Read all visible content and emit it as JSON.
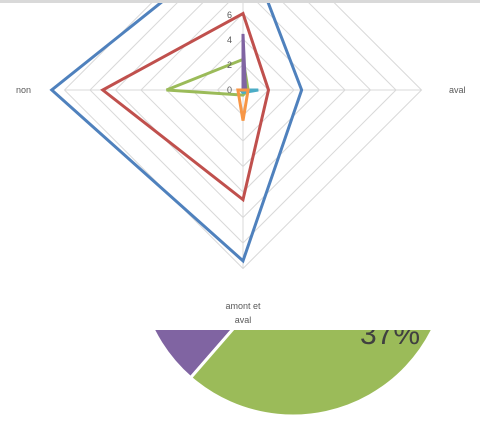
{
  "chart_data": [
    {
      "type": "radar",
      "axes": [
        "aval",
        "amont et aval",
        "non",
        ""
      ],
      "axis_labels": {
        "aval": "aval",
        "amont_line1": "amont et",
        "amont_line2": "aval",
        "non": "non"
      },
      "ticks": [
        "0",
        "2",
        "4",
        "6"
      ],
      "rlim": [
        0,
        7
      ],
      "grid": true,
      "series": [
        {
          "values": [
            2.3,
            6.7,
            7.5,
            6.0
          ],
          "color": "#4f81bd"
        },
        {
          "values": [
            1.0,
            4.3,
            5.5,
            3.0
          ],
          "color": "#c0504d"
        },
        {
          "values": [
            0.2,
            0.2,
            3.0,
            1.2
          ],
          "color": "#9bbb59"
        },
        {
          "values": [
            0.1,
            0.0,
            0.0,
            2.2
          ],
          "color": "#8064a2"
        },
        {
          "values": [
            0.6,
            0.1,
            0.1,
            0.0
          ],
          "color": "#4bacc6"
        },
        {
          "values": [
            0.2,
            1.2,
            0.2,
            0.0
          ],
          "color": "#f79646"
        }
      ]
    },
    {
      "type": "pie",
      "slices": [
        {
          "label": "37%",
          "color": "#9bbb59"
        },
        {
          "color": "#8064a2"
        }
      ]
    }
  ]
}
